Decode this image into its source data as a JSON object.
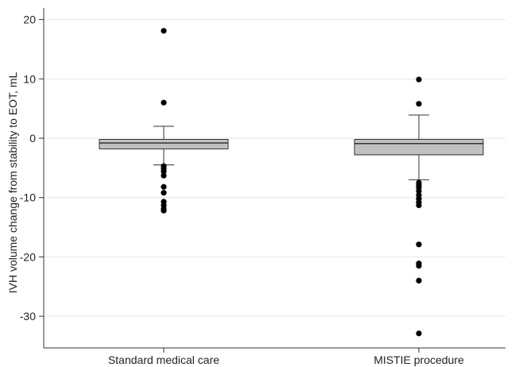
{
  "chart_data": {
    "type": "box",
    "title": "",
    "xlabel": "",
    "ylabel": "IVH volume change from stability to EOT, mL",
    "ylim": [
      -35,
      22
    ],
    "yticks": [
      20,
      10,
      0,
      -10,
      -20,
      -30
    ],
    "grid": true,
    "colors": {
      "box_fill": "#c0c0c0",
      "stroke": "#333333",
      "grid": "#e6e6e6",
      "point": "#000000"
    },
    "categories": [
      "Standard medical care",
      "MISTIE procedure"
    ],
    "boxes": [
      {
        "name": "Standard medical care",
        "whisker_low": -4.5,
        "q1": -1.8,
        "median": -0.8,
        "q3": -0.2,
        "whisker_high": 2.0,
        "outliers": [
          18.1,
          6.0,
          -4.7,
          -5.1,
          -5.6,
          -6.3,
          -8.2,
          -9.2,
          -10.7,
          -11.3,
          -11.9,
          -12.2
        ]
      },
      {
        "name": "MISTIE procedure",
        "whisker_low": -7.0,
        "q1": -2.8,
        "median": -0.9,
        "q3": -0.2,
        "whisker_high": 3.9,
        "outliers": [
          9.9,
          5.8,
          -7.5,
          -7.9,
          -8.3,
          -8.9,
          -9.6,
          -10.2,
          -10.8,
          -11.3,
          -17.9,
          -21.1,
          -21.5,
          -24.0,
          -32.9
        ]
      }
    ]
  }
}
